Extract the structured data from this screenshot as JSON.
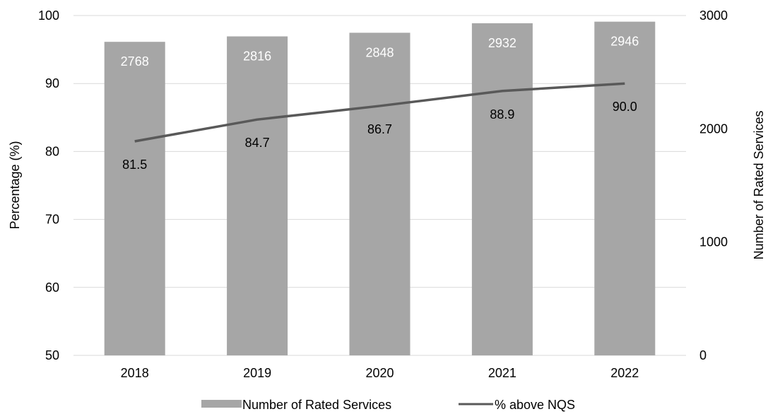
{
  "chart_data": {
    "type": "bar",
    "categories": [
      "2018",
      "2019",
      "2020",
      "2021",
      "2022"
    ],
    "series": [
      {
        "name": "Number of Rated Services",
        "type": "bar",
        "axis": "right",
        "values": [
          2768,
          2816,
          2848,
          2932,
          2946
        ],
        "labels": [
          "2768",
          "2816",
          "2848",
          "2932",
          "2946"
        ],
        "color": "#a6a6a6"
      },
      {
        "name": "% above NQS",
        "type": "line",
        "axis": "left",
        "values": [
          81.5,
          84.7,
          86.7,
          88.9,
          90.0
        ],
        "labels": [
          "81.5",
          "84.7",
          "86.7",
          "88.9",
          "90.0"
        ],
        "color": "#595959"
      }
    ],
    "ylabel": "Percentage (%)",
    "y2label": "Number of Rated Services",
    "ylim": [
      50,
      100
    ],
    "yticks": [
      "50",
      "60",
      "70",
      "80",
      "90",
      "100"
    ],
    "y2lim": [
      0,
      3000
    ],
    "y2ticks": [
      "0",
      "1000",
      "2000",
      "3000"
    ],
    "grid": true,
    "legend_position": "bottom",
    "colors": {
      "grid": "#d9d9d9"
    }
  }
}
